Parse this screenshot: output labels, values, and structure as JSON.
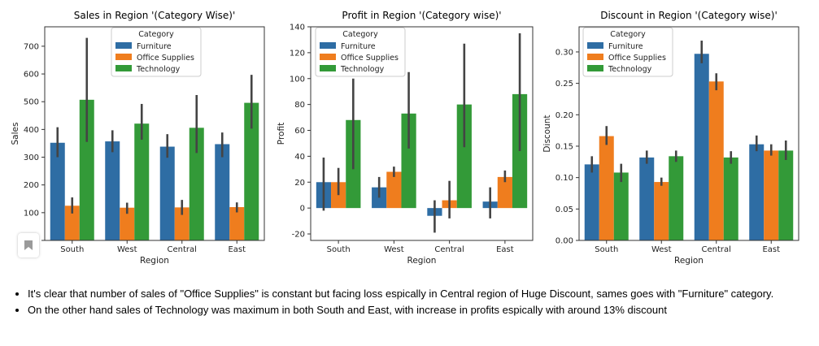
{
  "chart_data": [
    {
      "type": "bar",
      "title": "Sales in Region '(Category Wise)'",
      "xlabel": "Region",
      "ylabel": "Sales",
      "ylim": [
        0,
        770
      ],
      "yticks": [
        0,
        100,
        200,
        300,
        400,
        500,
        600,
        700
      ],
      "categories": [
        "South",
        "West",
        "Central",
        "East"
      ],
      "legend_title": "Category",
      "legend_position": "top-center",
      "series": [
        {
          "name": "Furniture",
          "color": "#2e6da4",
          "values": [
            352,
            357,
            338,
            347
          ],
          "err_low": [
            300,
            318,
            298,
            300
          ],
          "err_high": [
            408,
            397,
            383,
            389
          ]
        },
        {
          "name": "Office Supplies",
          "color": "#ef7d1e",
          "values": [
            125,
            118,
            119,
            120
          ],
          "err_low": [
            97,
            96,
            92,
            101
          ],
          "err_high": [
            155,
            136,
            146,
            137
          ]
        },
        {
          "name": "Technology",
          "color": "#339a38",
          "values": [
            507,
            421,
            406,
            496
          ],
          "err_low": [
            355,
            363,
            315,
            403
          ],
          "err_high": [
            730,
            492,
            524,
            597
          ]
        }
      ]
    },
    {
      "type": "bar",
      "title": "Profit in Region '(Category wise)'",
      "xlabel": "Region",
      "ylabel": "Profit",
      "ylim": [
        -25,
        140
      ],
      "yticks": [
        -20,
        0,
        20,
        40,
        60,
        80,
        100,
        120,
        140
      ],
      "categories": [
        "South",
        "West",
        "Central",
        "East"
      ],
      "legend_title": "Category",
      "legend_position": "top-left",
      "series": [
        {
          "name": "Furniture",
          "color": "#2e6da4",
          "values": [
            20,
            16,
            -6,
            5
          ],
          "err_low": [
            -2,
            8,
            -19,
            -8
          ],
          "err_high": [
            39,
            24,
            6,
            16
          ]
        },
        {
          "name": "Office Supplies",
          "color": "#ef7d1e",
          "values": [
            20,
            28,
            6,
            24
          ],
          "err_low": [
            10,
            24,
            -8,
            20
          ],
          "err_high": [
            31,
            32,
            21,
            29
          ]
        },
        {
          "name": "Technology",
          "color": "#339a38",
          "values": [
            68,
            73,
            80,
            88
          ],
          "err_low": [
            30,
            46,
            47,
            44
          ],
          "err_high": [
            100,
            105,
            127,
            135
          ]
        }
      ]
    },
    {
      "type": "bar",
      "title": "Discount in Region '(Category wise)'",
      "xlabel": "Region",
      "ylabel": "Discount",
      "ylim": [
        0,
        0.34
      ],
      "yticks": [
        0.0,
        0.05,
        0.1,
        0.15,
        0.2,
        0.25,
        0.3
      ],
      "ytick_labels": [
        "0.00",
        "0.05",
        "0.10",
        "0.15",
        "0.20",
        "0.25",
        "0.30"
      ],
      "categories": [
        "South",
        "West",
        "Central",
        "East"
      ],
      "legend_title": "Category",
      "legend_position": "top-left",
      "series": [
        {
          "name": "Furniture",
          "color": "#2e6da4",
          "values": [
            0.121,
            0.132,
            0.297,
            0.153
          ],
          "err_low": [
            0.108,
            0.122,
            0.282,
            0.142
          ],
          "err_high": [
            0.134,
            0.143,
            0.318,
            0.167
          ]
        },
        {
          "name": "Office Supplies",
          "color": "#ef7d1e",
          "values": [
            0.166,
            0.093,
            0.253,
            0.143
          ],
          "err_low": [
            0.152,
            0.087,
            0.239,
            0.135
          ],
          "err_high": [
            0.182,
            0.1,
            0.266,
            0.153
          ]
        },
        {
          "name": "Technology",
          "color": "#339a38",
          "values": [
            0.108,
            0.134,
            0.132,
            0.143
          ],
          "err_low": [
            0.093,
            0.125,
            0.122,
            0.128
          ],
          "err_high": [
            0.122,
            0.143,
            0.142,
            0.159
          ]
        }
      ]
    }
  ],
  "notes": [
    "It's clear that number of sales of \"Office Supplies\" is constant but facing loss espically in Central region of Huge Discount, sames goes with \"Furniture\" category.",
    "On the other hand sales of Technology was maximum in both South and East, with increase in profits espically with around 13% discount"
  ]
}
